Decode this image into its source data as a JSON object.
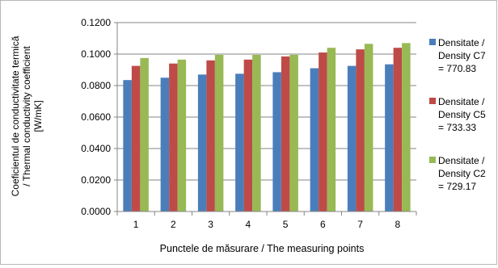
{
  "chart_data": {
    "type": "bar",
    "xlabel": "Punctele de măsurare / The measuring points",
    "ylabel_lines": [
      "Coeficientul de conductivitate termică",
      "/ Thermal conductivity coefficient",
      "[W/mK]"
    ],
    "ylim": [
      0,
      0.12
    ],
    "yticks": [
      "0.0000",
      "0.0200",
      "0.0400",
      "0.0600",
      "0.0800",
      "0.1000",
      "0.1200"
    ],
    "ytick_values": [
      0,
      0.02,
      0.04,
      0.06,
      0.08,
      0.1,
      0.12
    ],
    "grid": true,
    "legend_position": "right",
    "categories": [
      "1",
      "2",
      "3",
      "4",
      "5",
      "6",
      "7",
      "8"
    ],
    "series": [
      {
        "name_lines": [
          "Densitate /",
          "Density C7",
          "= 770.83"
        ],
        "color": "#4a7ebb",
        "values": [
          0.0835,
          0.085,
          0.087,
          0.0875,
          0.0885,
          0.091,
          0.0925,
          0.0935
        ]
      },
      {
        "name_lines": [
          "Densitate /",
          "Density C5",
          "= 733.33"
        ],
        "color": "#be4b48",
        "values": [
          0.0925,
          0.094,
          0.096,
          0.0965,
          0.0985,
          0.101,
          0.103,
          0.104
        ]
      },
      {
        "name_lines": [
          "Densitate /",
          "Density C2",
          "= 729.17"
        ],
        "color": "#98b954",
        "values": [
          0.0975,
          0.0965,
          0.0995,
          0.0995,
          0.0995,
          0.104,
          0.1065,
          0.107
        ]
      }
    ]
  }
}
